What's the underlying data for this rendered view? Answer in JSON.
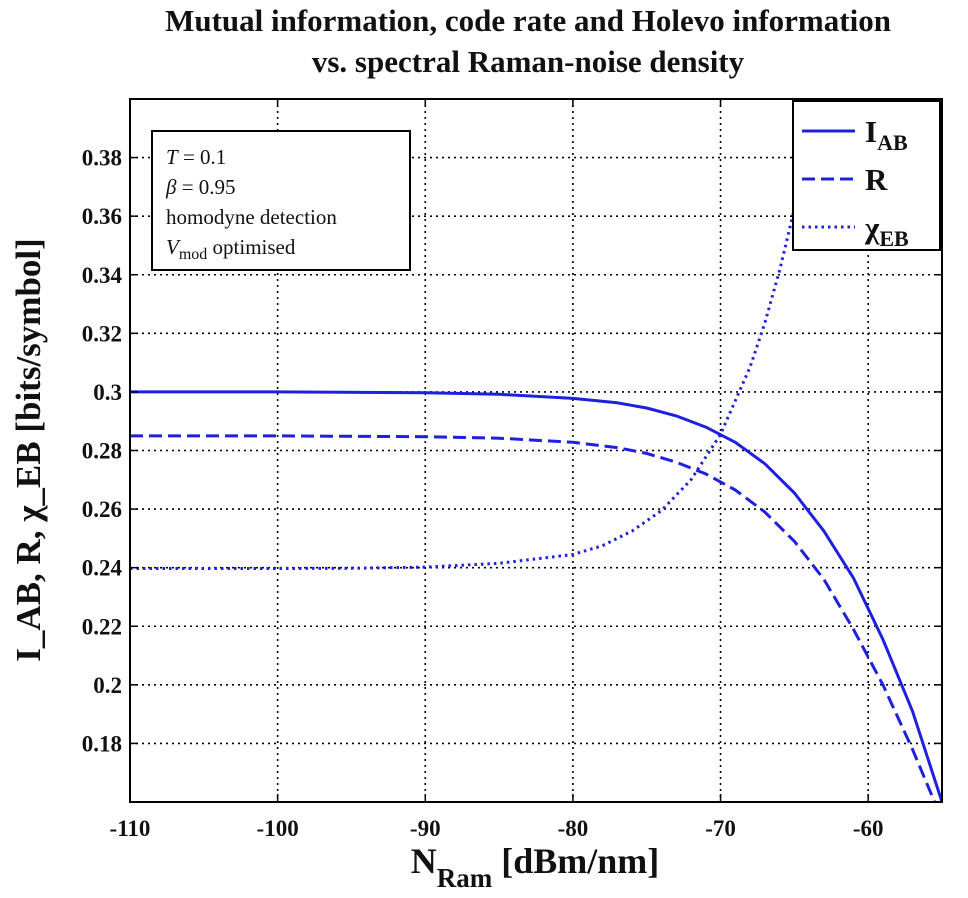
{
  "chart_data": {
    "type": "line",
    "title": [
      "Mutual information, code rate and Holevo information",
      "vs. spectral Raman-noise density"
    ],
    "xlabel": {
      "main": "N",
      "sub": "Ram",
      "rest": " [dBm/nm]"
    },
    "ylabel": "I_AB, R, χ_EB [bits/symbol]",
    "xlim": [
      -110,
      -55
    ],
    "ylim": [
      0.16,
      0.4
    ],
    "xticks": [
      -110,
      -100,
      -90,
      -80,
      -70,
      -60
    ],
    "xtick_labels": [
      "-110",
      "-100",
      "-90",
      "-80",
      "-70",
      "-60"
    ],
    "yticks": [
      0.18,
      0.2,
      0.22,
      0.24,
      0.26,
      0.28,
      0.3,
      0.32,
      0.34,
      0.36,
      0.38
    ],
    "ytick_labels": [
      "0.18",
      "0.2",
      "0.22",
      "0.24",
      "0.26",
      "0.28",
      "0.3",
      "0.32",
      "0.34",
      "0.36",
      "0.38"
    ],
    "grid": true,
    "legend_position": "top-right",
    "color": "#1f1fe0",
    "series": [
      {
        "name": "I_AB",
        "label_main": "I",
        "label_sub": "AB",
        "style": "solid",
        "x": [
          -110,
          -100,
          -90,
          -85,
          -80,
          -77,
          -75,
          -73,
          -71,
          -69,
          -67,
          -65,
          -63,
          -61,
          -59,
          -57,
          -55
        ],
        "y": [
          0.3,
          0.3,
          0.2997,
          0.2992,
          0.2978,
          0.2963,
          0.2945,
          0.2918,
          0.288,
          0.2828,
          0.2755,
          0.2655,
          0.2525,
          0.2365,
          0.2155,
          0.191,
          0.16
        ]
      },
      {
        "name": "R",
        "label_main": "R",
        "label_sub": "",
        "style": "dashed",
        "x": [
          -110,
          -100,
          -90,
          -85,
          -80,
          -77,
          -75,
          -73,
          -71,
          -69,
          -67,
          -65,
          -63,
          -61,
          -59,
          -57,
          -55.5
        ],
        "y": [
          0.285,
          0.285,
          0.2847,
          0.2842,
          0.2828,
          0.281,
          0.279,
          0.276,
          0.272,
          0.2665,
          0.259,
          0.249,
          0.236,
          0.219,
          0.2,
          0.178,
          0.16
        ]
      },
      {
        "name": "χ_EB",
        "label_main": "χ",
        "label_sub": "EB",
        "style": "dotted",
        "x": [
          -110,
          -100,
          -95,
          -90,
          -85,
          -80,
          -78,
          -76,
          -74,
          -72,
          -70,
          -68,
          -67,
          -66,
          -65,
          -64,
          -63.5
        ],
        "y": [
          0.2397,
          0.2397,
          0.2398,
          0.2402,
          0.2415,
          0.2445,
          0.2475,
          0.2525,
          0.2595,
          0.27,
          0.2855,
          0.3085,
          0.3235,
          0.3415,
          0.3625,
          0.3865,
          0.4
        ]
      }
    ],
    "annotation": {
      "lines": [
        {
          "var": "T",
          "sub": "",
          "rest": " = 0.1"
        },
        {
          "var": "β",
          "sub": "",
          "rest": " = 0.95"
        },
        {
          "var": "",
          "sub": "",
          "rest": "homodyne detection"
        },
        {
          "var": "V",
          "sub": "mod",
          "rest": " optimised"
        }
      ]
    }
  }
}
